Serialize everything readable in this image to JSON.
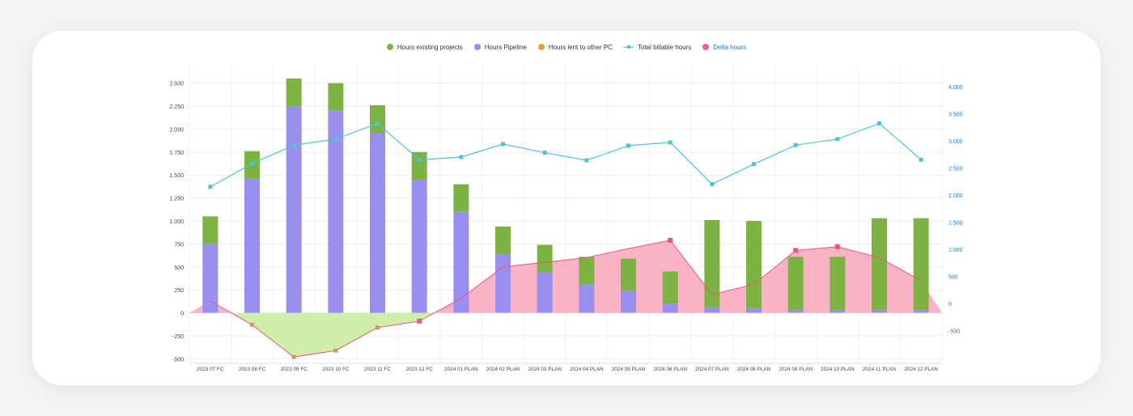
{
  "chart_data": {
    "type": "bar",
    "stacked": true,
    "title": "",
    "xlabel": "",
    "ylabel": "",
    "categories": [
      "2023 07 FC",
      "2023 08 FC",
      "2023 09 FC",
      "2023 10 FC",
      "2023 11 FC",
      "2023 12 FC",
      "2024 01 PLAN",
      "2024 02 PLAN",
      "2024 03 PLAN",
      "2024 04 PLAN",
      "2024 05 PLAN",
      "2024 06 PLAN",
      "2024 07 PLAN",
      "2024 08 PLAN",
      "2024 09 PLAN",
      "2024 10 PLAN",
      "2024 11 PLAN",
      "2024 12 PLAN"
    ],
    "y_left": {
      "ylim": [
        -550,
        2700
      ],
      "ticks": [
        -500,
        -250,
        0,
        250,
        500,
        750,
        1000,
        1250,
        1500,
        1750,
        2000,
        2250,
        2500
      ],
      "tick_labels": [
        "-500",
        "-250",
        "0",
        "250",
        "500",
        "750",
        "1.000",
        "1.250",
        "1.500",
        "1.750",
        "2.000",
        "2.250",
        "2.500"
      ]
    },
    "y_right": {
      "ylim": [
        -1100,
        4400
      ],
      "ticks": [
        -500,
        0,
        500,
        1000,
        1500,
        2000,
        2500,
        3000,
        3500,
        4000
      ],
      "tick_labels": [
        "-500",
        "0",
        "500",
        "1.000",
        "1.500",
        "2.000",
        "2.500",
        "3.000",
        "3.500",
        "4.000"
      ]
    },
    "grid": true,
    "legend_position": "top-center",
    "series": [
      {
        "name": "Hours existing projects",
        "type": "bar",
        "axis": "left",
        "color": "#7cb342",
        "values": [
          300,
          300,
          300,
          300,
          300,
          300,
          300,
          300,
          300,
          300,
          350,
          350,
          950,
          950,
          580,
          580,
          1000,
          1000
        ]
      },
      {
        "name": "Hours Pipeline",
        "type": "bar",
        "axis": "left",
        "color": "#9a8fef",
        "values": [
          750,
          1460,
          2250,
          2200,
          1960,
          1450,
          1100,
          640,
          440,
          310,
          240,
          100,
          60,
          50,
          30,
          30,
          30,
          30
        ]
      },
      {
        "name": "Hours lent to other PC",
        "type": "bar",
        "axis": "left",
        "color": "#e6a23c",
        "values": [
          0,
          0,
          0,
          0,
          0,
          0,
          0,
          0,
          0,
          0,
          0,
          0,
          0,
          0,
          0,
          0,
          0,
          0
        ]
      },
      {
        "name": "Total billable hours",
        "type": "line",
        "axis": "right",
        "color": "#4fc3cf",
        "values": [
          2150,
          2580,
          2920,
          3030,
          3320,
          2650,
          2700,
          2940,
          2780,
          2640,
          2910,
          2970,
          2200,
          2570,
          2920,
          3030,
          3320,
          2650
        ]
      },
      {
        "name": "Delta hours",
        "type": "area",
        "axis": "left",
        "color": "#f06292",
        "values": [
          130,
          -130,
          -480,
          -410,
          -160,
          -90,
          160,
          500,
          550,
          600,
          700,
          790,
          200,
          310,
          680,
          720,
          600,
          350
        ]
      }
    ]
  }
}
